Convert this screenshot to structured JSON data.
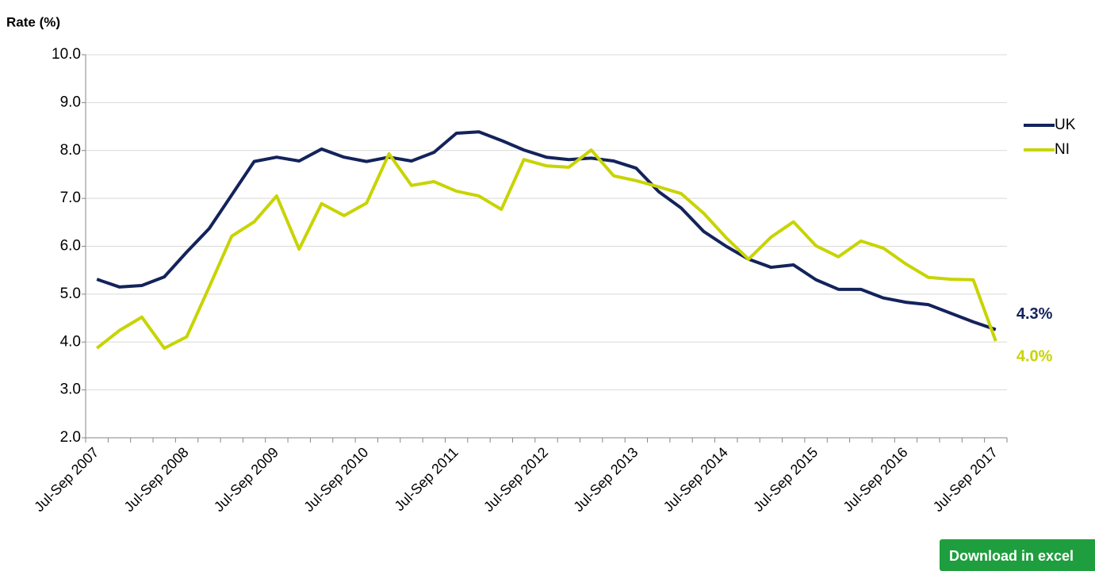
{
  "chart_data": {
    "type": "line",
    "y_label": "Rate (%)",
    "categories": [
      "Jul-Sep 2007",
      null,
      null,
      null,
      "Jul-Sep 2008",
      null,
      null,
      null,
      "Jul-Sep 2009",
      null,
      null,
      null,
      "Jul-Sep 2010",
      null,
      null,
      null,
      "Jul-Sep 2011",
      null,
      null,
      null,
      "Jul-Sep 2012",
      null,
      null,
      null,
      "Jul-Sep 2013",
      null,
      null,
      null,
      "Jul-Sep 2014",
      null,
      null,
      null,
      "Jul-Sep 2015",
      null,
      null,
      null,
      "Jul-Sep 2016",
      null,
      null,
      null,
      "Jul-Sep 2017"
    ],
    "series": [
      {
        "name": "UK",
        "color": "#13235b",
        "values": [
          5.31,
          5.15,
          5.18,
          5.36,
          5.88,
          6.37,
          7.07,
          7.77,
          7.86,
          7.78,
          8.03,
          7.86,
          7.77,
          7.86,
          7.78,
          7.96,
          8.36,
          8.39,
          8.21,
          8.01,
          7.86,
          7.81,
          7.84,
          7.78,
          7.63,
          7.14,
          6.8,
          6.31,
          6.0,
          5.73,
          5.56,
          5.61,
          5.3,
          5.1,
          5.1,
          4.92,
          4.83,
          4.78,
          4.6,
          4.42,
          4.26
        ],
        "value_labels": [
          null,
          null,
          null,
          null,
          null,
          null,
          null,
          null,
          null,
          null,
          null,
          null,
          null,
          null,
          null,
          null,
          null,
          null,
          null,
          null,
          null,
          null,
          null,
          null,
          null,
          null,
          null,
          null,
          null,
          null,
          null,
          null,
          null,
          null,
          null,
          null,
          null,
          null,
          null,
          null,
          "4.3%"
        ]
      },
      {
        "name": "NI",
        "color": "#c8d400",
        "values": [
          3.87,
          4.24,
          4.52,
          3.87,
          4.11,
          5.15,
          6.21,
          6.51,
          7.05,
          5.94,
          6.89,
          6.64,
          6.9,
          7.93,
          7.27,
          7.35,
          7.15,
          7.05,
          6.77,
          7.81,
          7.68,
          7.65,
          8.01,
          7.47,
          7.37,
          7.24,
          7.1,
          6.69,
          6.18,
          5.73,
          6.19,
          6.51,
          6.01,
          5.78,
          6.11,
          5.96,
          5.63,
          5.35,
          5.31,
          5.3,
          4.02
        ],
        "value_labels": [
          null,
          null,
          null,
          null,
          null,
          null,
          null,
          null,
          null,
          null,
          null,
          null,
          null,
          null,
          null,
          null,
          null,
          null,
          null,
          null,
          null,
          null,
          null,
          null,
          null,
          null,
          null,
          null,
          null,
          null,
          null,
          null,
          null,
          null,
          null,
          null,
          null,
          null,
          null,
          null,
          "4.0%"
        ]
      }
    ],
    "ylim": [
      2,
      10
    ],
    "yticks": [
      {
        "value": 2,
        "label": "2.0"
      },
      {
        "value": 3,
        "label": "3.0"
      },
      {
        "value": 4,
        "label": "4.0"
      },
      {
        "value": 5,
        "label": "5.0"
      },
      {
        "value": 6,
        "label": "6.0"
      },
      {
        "value": 7,
        "label": "7.0"
      },
      {
        "value": 8,
        "label": "8.0"
      },
      {
        "value": 9,
        "label": "9.0"
      },
      {
        "value": 10,
        "label": "10.0"
      }
    ],
    "grid": true,
    "legend": "right"
  },
  "download_button": "Download in excel"
}
